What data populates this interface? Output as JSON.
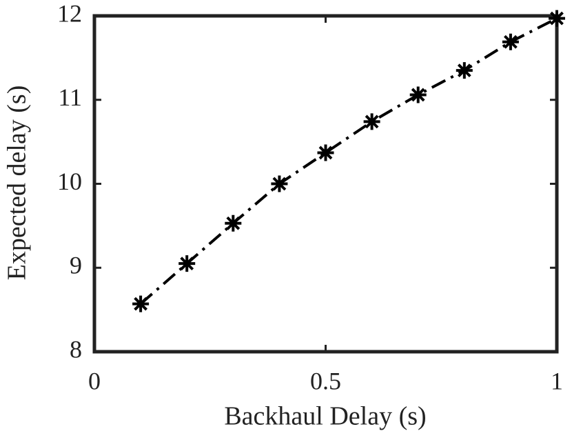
{
  "chart_data": {
    "type": "line",
    "xlabel": "Backhaul Delay (s)",
    "ylabel": "Expected delay (s)",
    "x": [
      0.1,
      0.2,
      0.3,
      0.4,
      0.5,
      0.6,
      0.7,
      0.8,
      0.9,
      1.0
    ],
    "values": [
      8.57,
      9.05,
      9.53,
      10.0,
      10.37,
      10.74,
      11.06,
      11.35,
      11.69,
      11.97
    ],
    "color": "#000000",
    "linestyle": "-.",
    "marker": "*",
    "xlim": [
      0,
      1
    ],
    "xticks": [
      0,
      0.5,
      1
    ],
    "ylim": [
      8,
      12
    ],
    "yticks": [
      8,
      9,
      10,
      11,
      12
    ]
  }
}
